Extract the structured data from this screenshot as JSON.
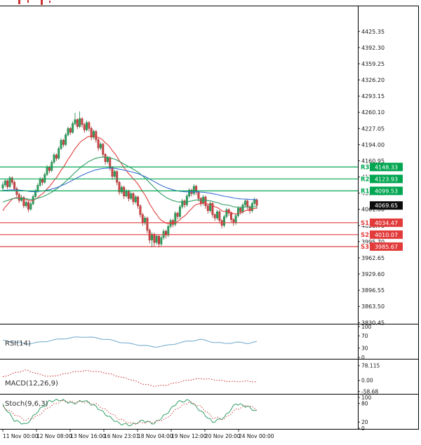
{
  "chart_data": {
    "type": "candlestick",
    "x_axis_labels": [
      "11 Nov 00:00",
      "12 Nov 08:00",
      "13 Nov 16:00",
      "16 Nov 23:01",
      "18 Nov 04:00",
      "19 Nov 12:00",
      "20 Nov 20:00",
      "24 Nov 00:00"
    ],
    "y_axis_labels": [
      "4425.35",
      "4392.30",
      "4359.25",
      "4326.20",
      "4293.15",
      "4260.10",
      "4227.05",
      "4194.00",
      "4160.95",
      "4127.90",
      "4094.85",
      "4061.80",
      "4028.75",
      "3995.70",
      "3962.65",
      "3929.60",
      "3896.55",
      "3863.50",
      "3830.45"
    ],
    "price_axis": {
      "top": 4478,
      "bottom": 3828
    },
    "colors": {
      "up": "#1d7a44",
      "up_fill": "#2fa35e",
      "down": "#9e2424",
      "down_fill": "#d04545",
      "pivot_resistance": "#00a651",
      "pivot_support": "#e23b3b",
      "current_price_badge": "#0c0c0c"
    },
    "pivot_levels": [
      {
        "label": "R3",
        "value": 4148.33,
        "price_text": "4148.33",
        "color": "#00a651"
      },
      {
        "label": "R2",
        "value": 4123.93,
        "price_text": "4123.93",
        "color": "#00a651"
      },
      {
        "label": "R1",
        "value": 4099.53,
        "price_text": "4099.53",
        "color": "#00a651"
      },
      {
        "label": "S1",
        "value": 4034.47,
        "price_text": "4034.47",
        "color": "#e23b3b"
      },
      {
        "label": "S2",
        "value": 4010.07,
        "price_text": "4010.07",
        "color": "#e23b3b"
      },
      {
        "label": "S3",
        "value": 3985.67,
        "price_text": "3985.67",
        "color": "#e23b3b"
      }
    ],
    "current_price": {
      "text": "4069.65",
      "value": 4069.65
    },
    "moving_averages": [
      {
        "name": "fast-ma-red",
        "color": "#e03c3c",
        "period": 16,
        "seed": 4052
      },
      {
        "name": "mid-ma-green",
        "color": "#2f9e63",
        "period": 45,
        "seed": 4075
      },
      {
        "name": "slow-ma-blue",
        "color": "#3b6fd4",
        "period": 90,
        "seed": 4100
      }
    ],
    "candles": [
      [
        4105,
        4118,
        4100,
        4112
      ],
      [
        4112,
        4124,
        4108,
        4120
      ],
      [
        4120,
        4123,
        4103,
        4108
      ],
      [
        4108,
        4130,
        4105,
        4126
      ],
      [
        4126,
        4129,
        4112,
        4117
      ],
      [
        4117,
        4121,
        4099,
        4104
      ],
      [
        4104,
        4108,
        4087,
        4092
      ],
      [
        4092,
        4096,
        4075,
        4080
      ],
      [
        4080,
        4091,
        4077,
        4086
      ],
      [
        4086,
        4089,
        4064,
        4069
      ],
      [
        4069,
        4080,
        4065,
        4076
      ],
      [
        4076,
        4079,
        4056,
        4062
      ],
      [
        4062,
        4077,
        4059,
        4073
      ],
      [
        4073,
        4092,
        4070,
        4088
      ],
      [
        4088,
        4103,
        4085,
        4099
      ],
      [
        4099,
        4115,
        4096,
        4111
      ],
      [
        4111,
        4128,
        4108,
        4124
      ],
      [
        4124,
        4127,
        4111,
        4117
      ],
      [
        4117,
        4137,
        4114,
        4133
      ],
      [
        4133,
        4152,
        4130,
        4148
      ],
      [
        4148,
        4151,
        4136,
        4141
      ],
      [
        4141,
        4162,
        4138,
        4158
      ],
      [
        4158,
        4177,
        4155,
        4173
      ],
      [
        4173,
        4176,
        4161,
        4166
      ],
      [
        4166,
        4190,
        4163,
        4186
      ],
      [
        4186,
        4207,
        4183,
        4203
      ],
      [
        4203,
        4206,
        4189,
        4194
      ],
      [
        4194,
        4218,
        4191,
        4214
      ],
      [
        4214,
        4231,
        4211,
        4227
      ],
      [
        4227,
        4230,
        4214,
        4219
      ],
      [
        4219,
        4241,
        4216,
        4237
      ],
      [
        4237,
        4259,
        4233,
        4245
      ],
      [
        4245,
        4248,
        4226,
        4231
      ],
      [
        4231,
        4262,
        4228,
        4247
      ],
      [
        4247,
        4250,
        4229,
        4235
      ],
      [
        4235,
        4239,
        4218,
        4224
      ],
      [
        4224,
        4243,
        4221,
        4239
      ],
      [
        4239,
        4242,
        4221,
        4227
      ],
      [
        4227,
        4231,
        4203,
        4209
      ],
      [
        4209,
        4225,
        4205,
        4221
      ],
      [
        4221,
        4224,
        4198,
        4204
      ],
      [
        4204,
        4208,
        4181,
        4187
      ],
      [
        4187,
        4199,
        4183,
        4195
      ],
      [
        4195,
        4198,
        4168,
        4174
      ],
      [
        4174,
        4177,
        4153,
        4159
      ],
      [
        4159,
        4171,
        4155,
        4167
      ],
      [
        4167,
        4170,
        4141,
        4147
      ],
      [
        4147,
        4150,
        4122,
        4129
      ],
      [
        4129,
        4143,
        4125,
        4139
      ],
      [
        4139,
        4142,
        4111,
        4117
      ],
      [
        4117,
        4120,
        4091,
        4097
      ],
      [
        4097,
        4111,
        4093,
        4107
      ],
      [
        4107,
        4110,
        4083,
        4089
      ],
      [
        4089,
        4103,
        4086,
        4099
      ],
      [
        4099,
        4102,
        4078,
        4084
      ],
      [
        4084,
        4098,
        4081,
        4094
      ],
      [
        4094,
        4097,
        4071,
        4077
      ],
      [
        4077,
        4091,
        4073,
        4087
      ],
      [
        4087,
        4090,
        4063,
        4069
      ],
      [
        4069,
        4072,
        4045,
        4051
      ],
      [
        4051,
        4055,
        4028,
        4034
      ],
      [
        4034,
        4048,
        4030,
        4044
      ],
      [
        4044,
        4047,
        4013,
        4019
      ],
      [
        4019,
        4023,
        3992,
        3999
      ],
      [
        3999,
        4015,
        3984,
        4011
      ],
      [
        4011,
        4014,
        3986,
        3994
      ],
      [
        3994,
        4011,
        3990,
        4007
      ],
      [
        4007,
        4010,
        3984,
        3991
      ],
      [
        3991,
        4008,
        3987,
        4004
      ],
      [
        4004,
        4021,
        4000,
        4017
      ],
      [
        4017,
        4020,
        4002,
        4009
      ],
      [
        4009,
        4031,
        4005,
        4027
      ],
      [
        4027,
        4043,
        4023,
        4039
      ],
      [
        4039,
        4042,
        4025,
        4031
      ],
      [
        4031,
        4058,
        4027,
        4054
      ],
      [
        4054,
        4057,
        4041,
        4047
      ],
      [
        4047,
        4071,
        4043,
        4067
      ],
      [
        4067,
        4083,
        4063,
        4079
      ],
      [
        4079,
        4082,
        4065,
        4071
      ],
      [
        4071,
        4093,
        4067,
        4089
      ],
      [
        4089,
        4105,
        4085,
        4101
      ],
      [
        4101,
        4104,
        4088,
        4094
      ],
      [
        4094,
        4113,
        4090,
        4109
      ],
      [
        4109,
        4112,
        4091,
        4097
      ],
      [
        4097,
        4100,
        4078,
        4084
      ],
      [
        4084,
        4087,
        4068,
        4074
      ],
      [
        4074,
        4091,
        4070,
        4087
      ],
      [
        4087,
        4090,
        4063,
        4069
      ],
      [
        4069,
        4072,
        4053,
        4059
      ],
      [
        4059,
        4078,
        4055,
        4074
      ],
      [
        4074,
        4077,
        4045,
        4051
      ],
      [
        4051,
        4054,
        4038,
        4044
      ],
      [
        4044,
        4061,
        4040,
        4057
      ],
      [
        4057,
        4060,
        4033,
        4039
      ],
      [
        4039,
        4042,
        4023,
        4029
      ],
      [
        4029,
        4051,
        4025,
        4047
      ],
      [
        4047,
        4065,
        4043,
        4061
      ],
      [
        4061,
        4064,
        4048,
        4054
      ],
      [
        4054,
        4057,
        4035,
        4041
      ],
      [
        4041,
        4044,
        4028,
        4034
      ],
      [
        4034,
        4053,
        4030,
        4049
      ],
      [
        4049,
        4068,
        4045,
        4064
      ],
      [
        4064,
        4067,
        4051,
        4057
      ],
      [
        4057,
        4075,
        4053,
        4071
      ],
      [
        4071,
        4083,
        4067,
        4079
      ],
      [
        4079,
        4082,
        4061,
        4067
      ],
      [
        4067,
        4070,
        4053,
        4059
      ],
      [
        4059,
        4078,
        4055,
        4074
      ],
      [
        4074,
        4086,
        4070,
        4081
      ],
      [
        4081,
        4084,
        4063,
        4070
      ]
    ],
    "indicators": [
      {
        "name": "rsi",
        "label": "RSI(14)",
        "range": [
          0,
          100
        ],
        "axis_labels": [
          {
            "t": "100",
            "v": 100
          },
          {
            "t": "70",
            "v": 70
          },
          {
            "t": "30",
            "v": 30
          },
          {
            "t": "0",
            "v": 0
          }
        ],
        "series": [
          {
            "name": "rsi-line",
            "color": "#6aa7cc",
            "style": "solid",
            "jitter": [
              1.5,
              0.8
            ],
            "waypoints": [
              55,
              50,
              44,
              48,
              54,
              60,
              64,
              67,
              63,
              58,
              50,
              44,
              39,
              34,
              38,
              46,
              53,
              58,
              50,
              45,
              49,
              46,
              52
            ]
          }
        ]
      },
      {
        "name": "macd",
        "label": "MACD(12,26,9)",
        "range": [
          -67,
          111
        ],
        "axis_labels": [
          {
            "t": "78.115",
            "v": 78.115
          },
          {
            "t": "0.00",
            "v": 0
          },
          {
            "t": "-58.68",
            "v": -58.68
          }
        ],
        "series": [
          {
            "name": "macd-signal",
            "color": "#cc2222",
            "style": "dotted",
            "jitter": [
              2,
              1.2
            ],
            "waypoints": [
              18,
              40,
              55,
              35,
              20,
              30,
              45,
              52,
              48,
              38,
              20,
              5,
              -18,
              -30,
              -25,
              -10,
              3,
              10,
              5,
              -3,
              -6,
              -4,
              -8
            ]
          }
        ]
      },
      {
        "name": "stochastic",
        "label": "Stoch(9,6,3)",
        "range": [
          0,
          100
        ],
        "axis_labels": [
          {
            "t": "100",
            "v": 100
          },
          {
            "t": "80",
            "v": 80
          },
          {
            "t": "20",
            "v": 20
          },
          {
            "t": "0",
            "v": 0
          }
        ],
        "series": [
          {
            "name": "stoch-k",
            "color": "#33a06a",
            "style": "solid",
            "jitter": [
              4,
              1.9
            ],
            "waypoints": [
              75,
              25,
              12,
              55,
              88,
              92,
              80,
              90,
              70,
              40,
              15,
              10,
              25,
              15,
              45,
              85,
              90,
              55,
              20,
              35,
              80,
              70,
              50
            ]
          },
          {
            "name": "stoch-d",
            "color": "#cc4444",
            "style": "dotted",
            "jitter": [
              3,
              1.7
            ],
            "waypoints": [
              70,
              45,
              25,
              40,
              70,
              88,
              85,
              85,
              78,
              55,
              30,
              15,
              18,
              20,
              30,
              65,
              85,
              70,
              35,
              30,
              60,
              75,
              58
            ]
          }
        ]
      }
    ]
  }
}
